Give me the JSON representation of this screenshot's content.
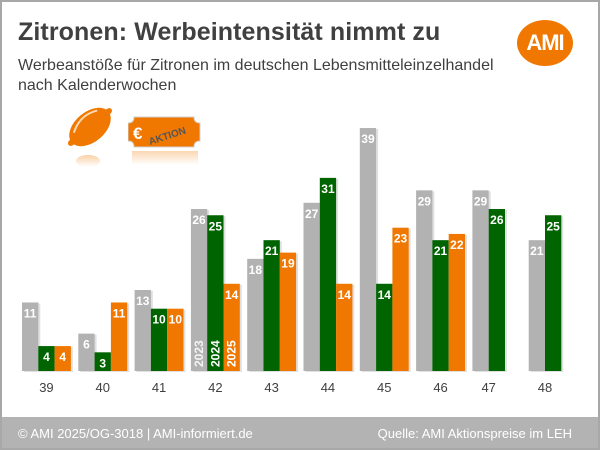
{
  "header": {
    "title": "Zitronen: Werbeintensität nimmt zu",
    "subtitle": "Werbeanstöße für Zitronen im deutschen Lebensmitteleinzelhandel nach Kalenderwochen",
    "logo_text": "AMI"
  },
  "decor": {
    "lemon_icon": "lemon-icon",
    "tag_icon": "price-tag-icon",
    "tag_currency": "€",
    "tag_text": "AKTION"
  },
  "colors": {
    "series_2023": "#b2b2b2",
    "series_2024": "#006400",
    "series_2025": "#f07800",
    "brand": "#f07800",
    "footer_bg": "#b3b3b3"
  },
  "chart_data": {
    "type": "bar",
    "title": "Zitronen: Werbeintensität nimmt zu",
    "xlabel": "Kalenderwoche",
    "ylabel": "Werbeanstöße",
    "categories": [
      "39",
      "40",
      "41",
      "42",
      "43",
      "44",
      "45",
      "46",
      "47",
      "48"
    ],
    "series": [
      {
        "name": "2023",
        "values": [
          11,
          6,
          13,
          26,
          18,
          27,
          39,
          29,
          29,
          21
        ]
      },
      {
        "name": "2024",
        "values": [
          4,
          3,
          10,
          25,
          21,
          31,
          14,
          21,
          26,
          25
        ]
      },
      {
        "name": "2025",
        "values": [
          4,
          11,
          10,
          14,
          19,
          14,
          23,
          22,
          null,
          null
        ]
      }
    ],
    "ylim": [
      0,
      40
    ],
    "grid": false,
    "legend": "year labels inside bars of week 42",
    "data_labels": true
  },
  "footer": {
    "copyright": "© AMI 2025/OG-3018 | AMI-informiert.de",
    "source": "Quelle: AMI Aktionspreise im LEH"
  }
}
